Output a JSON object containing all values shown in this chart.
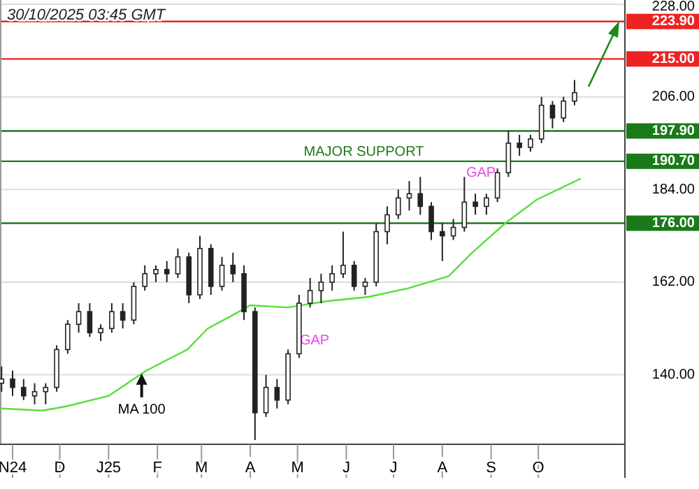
{
  "chart_data": {
    "type": "candlestick",
    "color": "#222222",
    "x": [
      "2024-10-25",
      "2024-11-01",
      "2024-11-08",
      "2024-11-15",
      "2024-11-22",
      "2024-11-29",
      "2024-12-06",
      "2024-12-13",
      "2024-12-20",
      "2024-12-27",
      "2025-01-03",
      "2025-01-10",
      "2025-01-17",
      "2025-01-24",
      "2025-01-31",
      "2025-02-07",
      "2025-02-14",
      "2025-02-21",
      "2025-02-28",
      "2025-03-07",
      "2025-03-14",
      "2025-03-21",
      "2025-03-28",
      "2025-04-04",
      "2025-04-11",
      "2025-04-18",
      "2025-04-25",
      "2025-05-02",
      "2025-05-09",
      "2025-05-16",
      "2025-05-23",
      "2025-05-30",
      "2025-06-06",
      "2025-06-13",
      "2025-06-20",
      "2025-06-27",
      "2025-07-04",
      "2025-07-11",
      "2025-07-18",
      "2025-07-25",
      "2025-08-01",
      "2025-08-08",
      "2025-08-15",
      "2025-08-22",
      "2025-08-29",
      "2025-09-05",
      "2025-09-12",
      "2025-09-19",
      "2025-09-26",
      "2025-10-03",
      "2025-10-10",
      "2025-10-17",
      "2025-10-24"
    ],
    "ohlc": [
      [
        138,
        142,
        136,
        139
      ],
      [
        139,
        141,
        135,
        137
      ],
      [
        137,
        139,
        134,
        135
      ],
      [
        135,
        138,
        133,
        136
      ],
      [
        136,
        138,
        133,
        137
      ],
      [
        137,
        147,
        136,
        146
      ],
      [
        146,
        153,
        145,
        152
      ],
      [
        152,
        157,
        150,
        155
      ],
      [
        155,
        157,
        149,
        150
      ],
      [
        150,
        152,
        148,
        151
      ],
      [
        151,
        157,
        150,
        155
      ],
      [
        155,
        157,
        151,
        153
      ],
      [
        153,
        162,
        152,
        161
      ],
      [
        161,
        166,
        160,
        164
      ],
      [
        164,
        166,
        162,
        165
      ],
      [
        165,
        167,
        162,
        164
      ],
      [
        164,
        170,
        163,
        168
      ],
      [
        168,
        169,
        157,
        159
      ],
      [
        159,
        173,
        158,
        170
      ],
      [
        170,
        171,
        159,
        161
      ],
      [
        161,
        168,
        160,
        166
      ],
      [
        166,
        169,
        162,
        164
      ],
      [
        164,
        166,
        153,
        155
      ],
      [
        155,
        156,
        124.5,
        131
      ],
      [
        131,
        140,
        130,
        137
      ],
      [
        137,
        139,
        132,
        134
      ],
      [
        134,
        146,
        133,
        145
      ],
      [
        145,
        159,
        144,
        157
      ],
      [
        157,
        163,
        156,
        160
      ],
      [
        160,
        164,
        157,
        162
      ],
      [
        162,
        166,
        160,
        164
      ],
      [
        164,
        174,
        163,
        166
      ],
      [
        166,
        167,
        160,
        161
      ],
      [
        161,
        163,
        159,
        162
      ],
      [
        162,
        176,
        161,
        174
      ],
      [
        174,
        180,
        171,
        178
      ],
      [
        178,
        184,
        177,
        182
      ],
      [
        182,
        186,
        179,
        183
      ],
      [
        183,
        187,
        178,
        180
      ],
      [
        180,
        181,
        172,
        174
      ],
      [
        174,
        176,
        167,
        173
      ],
      [
        173,
        177,
        172,
        175
      ],
      [
        175,
        187,
        174,
        181
      ],
      [
        181,
        183,
        178,
        180
      ],
      [
        180,
        183,
        178,
        182
      ],
      [
        182,
        189,
        181,
        188
      ],
      [
        188,
        198,
        187,
        195
      ],
      [
        195,
        197,
        192,
        194
      ],
      [
        194,
        197,
        193,
        196
      ],
      [
        196,
        206,
        195,
        204
      ],
      [
        204,
        205,
        198.5,
        201
      ],
      [
        201,
        206,
        200,
        205
      ],
      [
        205,
        210,
        204,
        207
      ]
    ],
    "series": [
      {
        "type": "line",
        "color": "#55e03a",
        "x": [
          "2024-10-25",
          "2024-11-20",
          "2024-12-05",
          "2025-01-01",
          "2025-01-25",
          "2025-02-20",
          "2025-03-05",
          "2025-03-20",
          "2025-04-01",
          "2025-04-25",
          "2025-05-20",
          "2025-06-15",
          "2025-07-10",
          "2025-08-05",
          "2025-08-20",
          "2025-09-10",
          "2025-09-30",
          "2025-10-28"
        ],
        "values": [
          132,
          131.5,
          132.5,
          135,
          141,
          146,
          151,
          154,
          156.5,
          156,
          157.5,
          158.5,
          160.5,
          163.4,
          169,
          176,
          181.6,
          186.6
        ]
      }
    ],
    "xlim": [
      "2024-10-24",
      "2025-11-25"
    ],
    "xticks": [
      {
        "value": "2024-11-01",
        "label": "N24"
      },
      {
        "value": "2024-12-01",
        "label": "D"
      },
      {
        "value": "2025-01-01",
        "label": "J25"
      },
      {
        "value": "2025-02-01",
        "label": "F"
      },
      {
        "value": "2025-03-01",
        "label": "M"
      },
      {
        "value": "2025-04-01",
        "label": "A"
      },
      {
        "value": "2025-05-01",
        "label": "M"
      },
      {
        "value": "2025-06-01",
        "label": "J"
      },
      {
        "value": "2025-07-01",
        "label": "J"
      },
      {
        "value": "2025-08-01",
        "label": "A"
      },
      {
        "value": "2025-09-01",
        "label": "S"
      },
      {
        "value": "2025-10-01",
        "label": "O"
      }
    ],
    "ylim": [
      123.5,
      229
    ],
    "yticks": [
      {
        "value": 140,
        "label": "140.00"
      },
      {
        "value": 162,
        "label": "162.00"
      },
      {
        "value": 184,
        "label": "184.00"
      },
      {
        "value": 206,
        "label": "206.00"
      },
      {
        "value": 228,
        "label": "228.00"
      }
    ],
    "grid": "y",
    "ref_lines": [
      {
        "axis": "y",
        "value": 223.9,
        "label": "223.90",
        "color": "#ee2222"
      },
      {
        "axis": "y",
        "value": 215,
        "label": "215.00",
        "color": "#ee2222"
      },
      {
        "axis": "y",
        "value": 197.9,
        "label": "197.90",
        "color": "#1a7a1a"
      },
      {
        "axis": "y",
        "value": 190.7,
        "label": "190.70",
        "color": "#1a7a1a"
      },
      {
        "axis": "y",
        "value": 176,
        "label": "176.00",
        "color": "#1a7a1a"
      }
    ],
    "annotations": [
      "30/10/2025 03:45 GMT",
      {
        "text": "MAJOR SUPPORT",
        "x": "2025-05-05",
        "y": 190.7
      },
      "GAP",
      "GAP",
      {
        "text": "MA 100",
        "x": "2025-01-22",
        "y": 140.3
      }
    ]
  }
}
